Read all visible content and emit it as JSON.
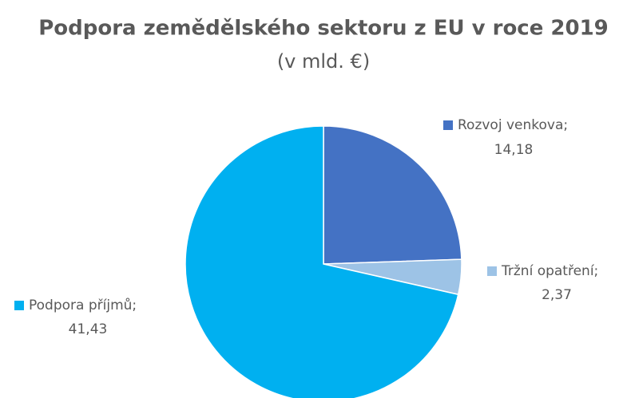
{
  "chart_data": {
    "type": "pie",
    "title": "Podpora zemědělského sektoru z EU v roce 2019",
    "subtitle": "(v mld. €)",
    "categories": [
      "Rozvoj venkova;",
      "Tržní opatření;",
      "Podpora příjmů;"
    ],
    "values": [
      14.18,
      2.37,
      41.43
    ],
    "value_labels": [
      "14,18",
      "2,37",
      "41,43"
    ],
    "colors": [
      "#4472c4",
      "#9dc3e6",
      "#00b0f0"
    ]
  }
}
